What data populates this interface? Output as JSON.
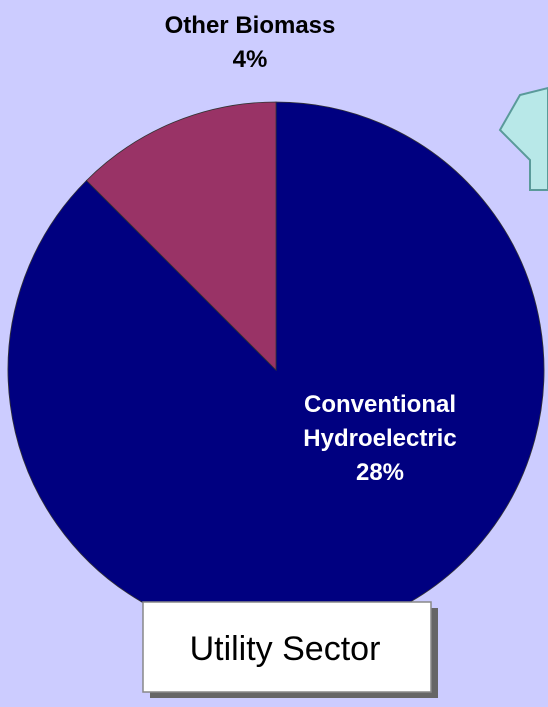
{
  "chart_data": {
    "type": "pie",
    "categories": [
      "Conventional Hydroelectric",
      "Other Biomass"
    ],
    "values": [
      28,
      4
    ],
    "value_labels": [
      "28%",
      "4%"
    ],
    "colors": [
      "#000080",
      "#993366"
    ],
    "annotation": "Utility Sector"
  }
}
